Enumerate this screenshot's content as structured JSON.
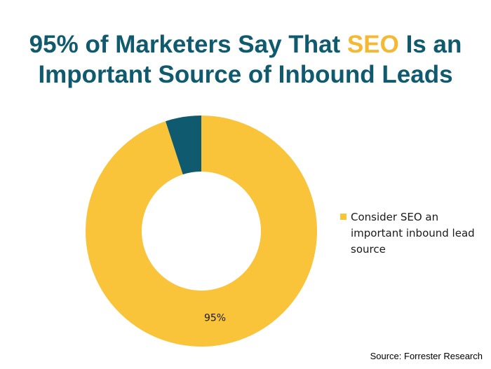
{
  "title": {
    "before": "95% of Marketers Say That ",
    "highlight": "SEO",
    "after": " Is an Important Source of Inbound Leads"
  },
  "colors": {
    "title": "#0f5a6e",
    "highlight": "#f5b833",
    "slice_consider": "#f9c33a",
    "slice_other": "#0f5a6e"
  },
  "chart_data": {
    "type": "pie",
    "donut": true,
    "slices": [
      {
        "label": "Consider SEO an important inbound lead source",
        "value": 95,
        "data_label": "95%",
        "color": "#f9c33a"
      },
      {
        "label": "",
        "value": 5,
        "data_label": "",
        "color": "#0f5a6e"
      }
    ],
    "legend": {
      "placement": "right",
      "entries": [
        "Consider SEO an important inbound lead source"
      ]
    }
  },
  "source": "Source: Forrester Research"
}
